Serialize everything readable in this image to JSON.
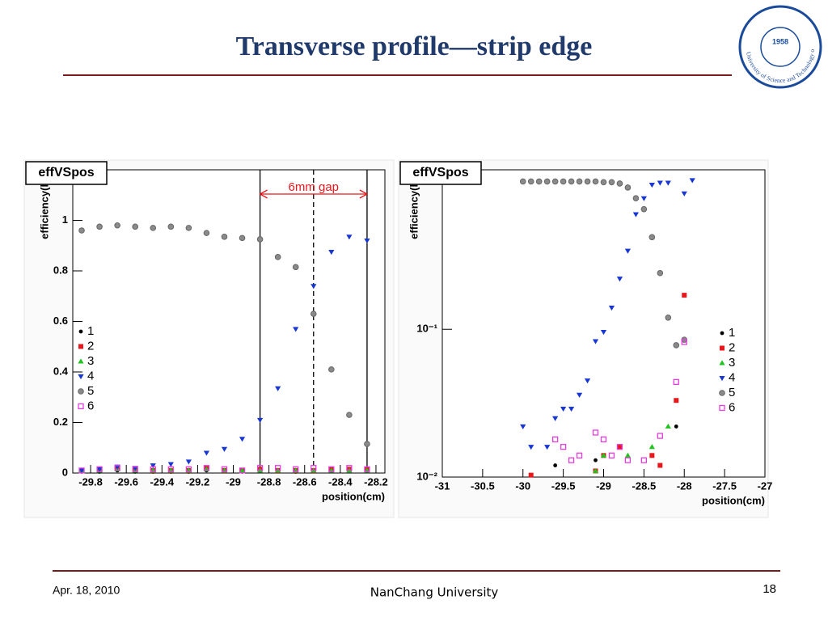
{
  "slide": {
    "title": "Transverse profile—strip edge",
    "date": "Apr. 18, 2010",
    "institution": "NanChang University",
    "page": "18",
    "logo": {
      "year": "1958",
      "text": "University of Science and Technology of China"
    }
  },
  "chart_data": [
    {
      "type": "scatter",
      "title": "effVSpos",
      "xlabel": "position(cm)",
      "ylabel": "efficiency(lo",
      "xlim": [
        -29.9,
        -28.15
      ],
      "ylim": [
        0,
        1.2
      ],
      "xticks": [
        -29.8,
        -29.6,
        -29.4,
        -29.2,
        -29,
        -28.8,
        -28.6,
        -28.4,
        -28.2
      ],
      "yticks": [
        0,
        0.2,
        0.4,
        0.6,
        0.8,
        1
      ],
      "x": [
        -29.85,
        -29.75,
        -29.65,
        -29.55,
        -29.45,
        -29.35,
        -29.25,
        -29.15,
        -29.05,
        -28.95,
        -28.85,
        -28.75,
        -28.65,
        -28.55,
        -28.45,
        -28.35,
        -28.25
      ],
      "series": [
        {
          "name": "1",
          "color": "#000000",
          "marker": "dot",
          "values": [
            0.005,
            0.005,
            0.01,
            0.005,
            0.005,
            0.005,
            0.005,
            0.01,
            0.01,
            0.005,
            0.015,
            0.01,
            0.005,
            0.01,
            0.01,
            0.015,
            0.015
          ]
        },
        {
          "name": "2",
          "color": "#e8171c",
          "marker": "square",
          "values": [
            0.01,
            0.015,
            0.02,
            0.015,
            0.01,
            0.01,
            0.01,
            0.02,
            0.01,
            0.01,
            0.015,
            0.01,
            0.01,
            0.01,
            0.015,
            0.015,
            0.015
          ]
        },
        {
          "name": "3",
          "color": "#1fc41f",
          "marker": "triangle",
          "values": [
            0.01,
            0.01,
            0.015,
            0.01,
            0.01,
            0.01,
            0.01,
            0.015,
            0.01,
            0.01,
            0.01,
            0.01,
            0.01,
            0.01,
            0.01,
            0.01,
            0.01
          ]
        },
        {
          "name": "4",
          "color": "#1736d4",
          "marker": "down",
          "values": [
            0.01,
            0.015,
            0.025,
            0.02,
            0.03,
            0.035,
            0.045,
            0.08,
            0.095,
            0.135,
            0.21,
            0.335,
            0.57,
            0.74,
            0.875,
            0.935,
            0.92
          ]
        },
        {
          "name": "5",
          "color": "#8a8a8a",
          "marker": "circle",
          "values": [
            0.96,
            0.975,
            0.98,
            0.975,
            0.97,
            0.975,
            0.97,
            0.95,
            0.935,
            0.93,
            0.925,
            0.855,
            0.815,
            0.63,
            0.41,
            0.23,
            0.115
          ]
        },
        {
          "name": "6",
          "color": "#e83ce0",
          "marker": "opensquare",
          "values": [
            0.01,
            0.015,
            0.02,
            0.015,
            0.015,
            0.015,
            0.015,
            0.02,
            0.015,
            0.01,
            0.02,
            0.02,
            0.015,
            0.02,
            0.015,
            0.02,
            0.015
          ]
        }
      ],
      "annotation": {
        "text": "6mm gap",
        "color": "#e8171c",
        "lines": [
          {
            "x": -28.85,
            "style": "solid"
          },
          {
            "x": -28.55,
            "style": "dashed"
          },
          {
            "x": -28.25,
            "style": "solid"
          }
        ]
      }
    },
    {
      "type": "scatter",
      "title": "effVSpos",
      "xlabel": "position(cm)",
      "ylabel": "efficiency(lo",
      "log_y": true,
      "xlim": [
        -31,
        -27
      ],
      "ylim": [
        0.01,
        1.2
      ],
      "xticks": [
        -31,
        -30.5,
        -30,
        -29.5,
        -29,
        -28.5,
        -28,
        -27.5,
        -27
      ],
      "yticks": [
        {
          "value": 0.01,
          "label": "10⁻²"
        },
        {
          "value": 0.1,
          "label": "10⁻¹"
        }
      ],
      "x": [
        -30,
        -29.9,
        -29.8,
        -29.7,
        -29.6,
        -29.5,
        -29.4,
        -29.3,
        -29.2,
        -29.1,
        -29,
        -28.9,
        -28.8,
        -28.7,
        -28.6,
        -28.5,
        -28.4,
        -28.3,
        -28.2,
        -28.1,
        -28,
        -27.9
      ],
      "series": [
        {
          "name": "1",
          "color": "#000000",
          "marker": "dot",
          "values": [
            null,
            null,
            null,
            null,
            0.012,
            null,
            null,
            null,
            null,
            0.013,
            null,
            null,
            null,
            null,
            null,
            null,
            null,
            0.012,
            null,
            0.022,
            null,
            null
          ]
        },
        {
          "name": "2",
          "color": "#e8171c",
          "marker": "square",
          "values": [
            null,
            0.0103,
            null,
            null,
            null,
            null,
            null,
            null,
            null,
            0.011,
            0.014,
            null,
            0.016,
            null,
            null,
            null,
            0.014,
            0.012,
            null,
            0.033,
            0.17,
            null
          ]
        },
        {
          "name": "3",
          "color": "#1fc41f",
          "marker": "triangle",
          "values": [
            null,
            null,
            null,
            null,
            null,
            null,
            null,
            null,
            null,
            0.011,
            0.014,
            null,
            null,
            0.014,
            null,
            null,
            0.016,
            null,
            0.022,
            null,
            null,
            null
          ]
        },
        {
          "name": "4",
          "color": "#1736d4",
          "marker": "down",
          "values": [
            0.022,
            0.016,
            null,
            0.016,
            0.025,
            0.029,
            0.029,
            0.036,
            0.045,
            0.083,
            0.096,
            0.14,
            0.22,
            0.34,
            0.6,
            0.77,
            0.95,
            0.98,
            0.98,
            null,
            0.83,
            1.02
          ]
        },
        {
          "name": "5",
          "color": "#8a8a8a",
          "marker": "circle",
          "values": [
            1,
            1,
            1,
            1,
            1,
            1,
            1,
            1,
            1,
            1,
            0.99,
            0.99,
            0.97,
            0.91,
            0.77,
            0.65,
            0.42,
            0.24,
            0.12,
            0.078,
            0.085,
            null
          ]
        },
        {
          "name": "6",
          "color": "#e83ce0",
          "marker": "opensquare",
          "values": [
            null,
            null,
            null,
            null,
            0.018,
            0.016,
            0.013,
            0.014,
            null,
            0.02,
            0.018,
            0.014,
            0.016,
            0.013,
            null,
            0.013,
            null,
            0.019,
            null,
            0.044,
            0.082,
            null
          ]
        }
      ]
    }
  ]
}
